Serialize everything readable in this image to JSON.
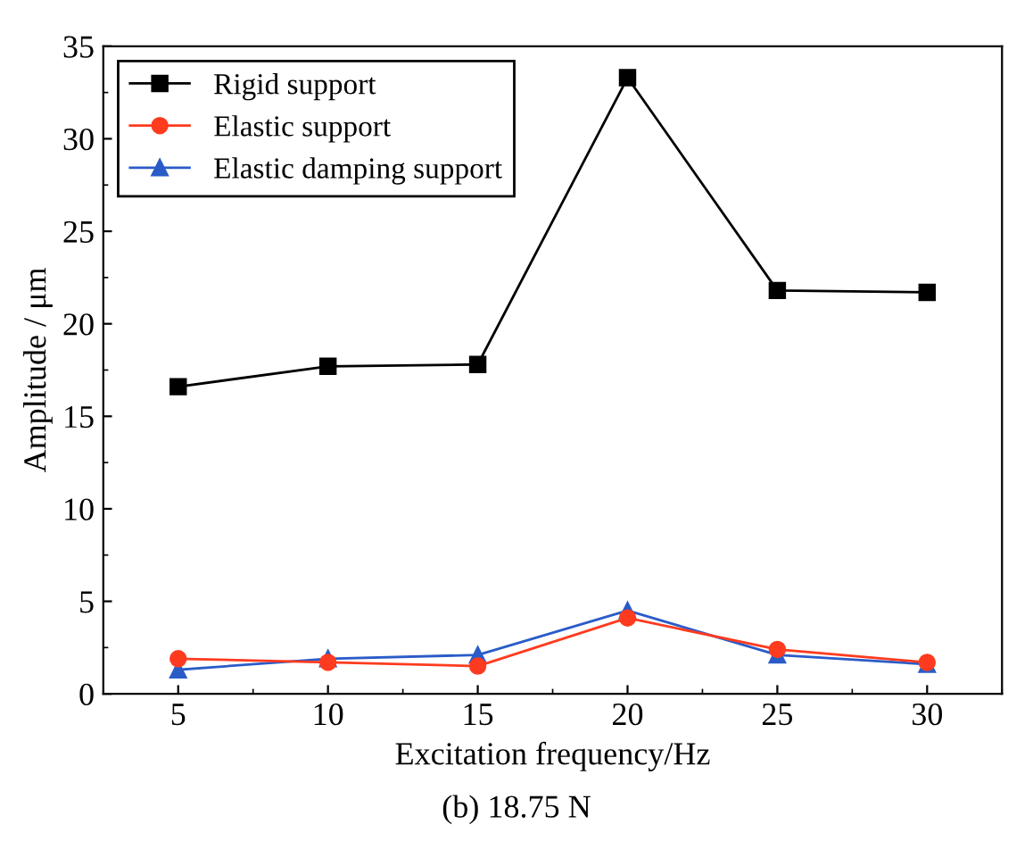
{
  "chart_data": {
    "type": "line",
    "xlabel": "Excitation frequency/Hz",
    "ylabel": "Amplitude / μm",
    "x": [
      5,
      10,
      15,
      20,
      25,
      30
    ],
    "series": [
      {
        "name": "Rigid support",
        "color": "#000000",
        "marker": "square",
        "values": [
          16.6,
          17.7,
          17.8,
          33.3,
          21.8,
          21.7
        ]
      },
      {
        "name": "Elastic support",
        "color": "#ff3b1f",
        "marker": "circle",
        "values": [
          1.9,
          1.7,
          1.5,
          4.1,
          2.4,
          1.7
        ]
      },
      {
        "name": "Elastic damping support",
        "color": "#2a5cc8",
        "marker": "triangle",
        "values": [
          1.3,
          1.9,
          2.1,
          4.5,
          2.1,
          1.6
        ]
      }
    ],
    "xlim": [
      2.5,
      32.5
    ],
    "xticks": [
      5,
      10,
      15,
      20,
      25,
      30
    ],
    "ylim": [
      0,
      35
    ],
    "yticks": [
      0,
      5,
      10,
      15,
      20,
      25,
      30,
      35
    ],
    "legend": "top left",
    "line_style": "solid",
    "annotations": [
      "(b) 18.75 N"
    ]
  }
}
